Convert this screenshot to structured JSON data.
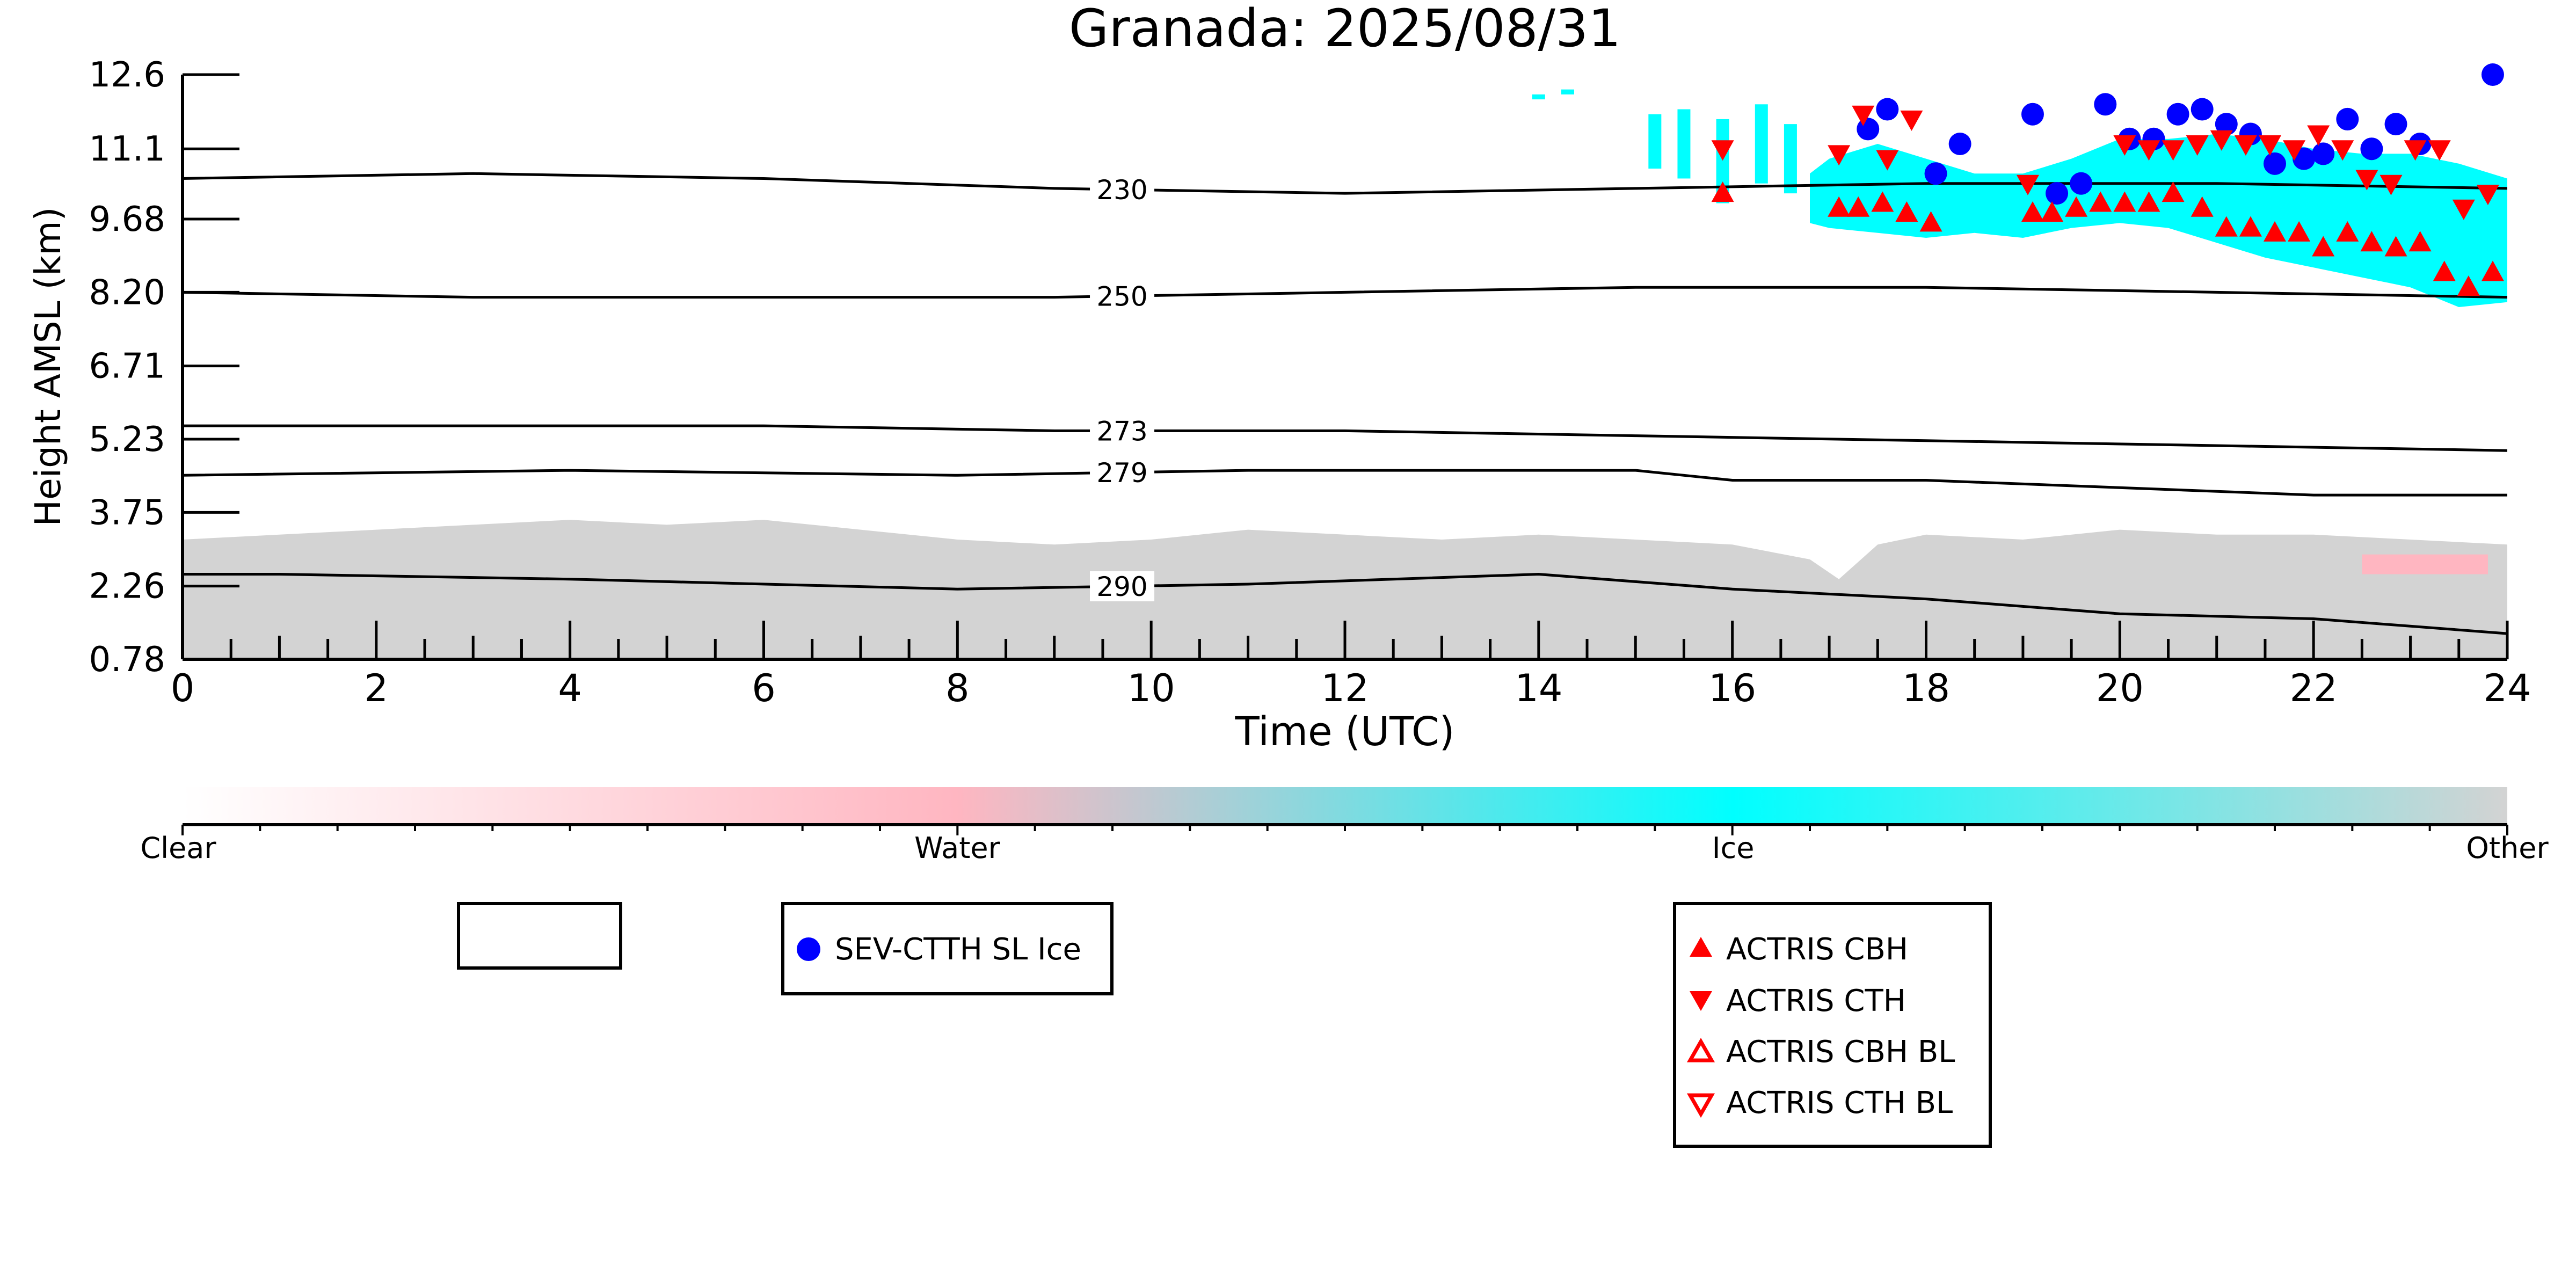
{
  "chart_data": {
    "type": "scatter",
    "title": "Granada: 2025/08/31",
    "xlabel": "Time (UTC)",
    "ylabel": "Height AMSL (km)",
    "xlim": [
      0,
      24
    ],
    "ylim": [
      0.78,
      12.6
    ],
    "x_ticks": [
      "0",
      "2",
      "4",
      "6",
      "8",
      "10",
      "12",
      "14",
      "16",
      "18",
      "20",
      "22",
      "24"
    ],
    "y_ticks": [
      "0.78",
      "2.26",
      "3.75",
      "5.23",
      "6.71",
      "8.20",
      "9.68",
      "11.1",
      "12.6"
    ],
    "grid": false,
    "colorbar": {
      "labels": [
        "Clear",
        "Water",
        "Ice",
        "Other"
      ],
      "colors": [
        "#ffffff",
        "#ffb6c1",
        "#00ffff",
        "#d3d3d3"
      ]
    },
    "classification": {
      "other_color": "#d3d3d3",
      "ice_color": "#00ffff",
      "water_color": "#ffb6c1",
      "other_top_km": [
        [
          0,
          3.2
        ],
        [
          1,
          3.3
        ],
        [
          2,
          3.4
        ],
        [
          3,
          3.5
        ],
        [
          4,
          3.6
        ],
        [
          5,
          3.5
        ],
        [
          6,
          3.6
        ],
        [
          7,
          3.4
        ],
        [
          8,
          3.2
        ],
        [
          9,
          3.1
        ],
        [
          10,
          3.2
        ],
        [
          11,
          3.4
        ],
        [
          12,
          3.3
        ],
        [
          13,
          3.2
        ],
        [
          14,
          3.3
        ],
        [
          15,
          3.2
        ],
        [
          16,
          3.1
        ],
        [
          16.8,
          2.8
        ],
        [
          17.1,
          2.4
        ],
        [
          17.5,
          3.1
        ],
        [
          18,
          3.3
        ],
        [
          19,
          3.2
        ],
        [
          20,
          3.4
        ],
        [
          21,
          3.3
        ],
        [
          22,
          3.3
        ],
        [
          23,
          3.2
        ],
        [
          24,
          3.1
        ]
      ],
      "ice_region_km": [
        [
          16.8,
          10.6,
          9.6
        ],
        [
          17,
          10.9,
          9.5
        ],
        [
          17.5,
          11.2,
          9.4
        ],
        [
          18,
          10.9,
          9.3
        ],
        [
          18.5,
          10.6,
          9.4
        ],
        [
          19,
          10.6,
          9.3
        ],
        [
          19.5,
          10.9,
          9.5
        ],
        [
          20,
          11.3,
          9.6
        ],
        [
          20.5,
          11.3,
          9.5
        ],
        [
          21,
          11.4,
          9.2
        ],
        [
          21.5,
          11.3,
          8.9
        ],
        [
          22,
          11.1,
          8.7
        ],
        [
          22.5,
          11.0,
          8.5
        ],
        [
          23,
          11.0,
          8.3
        ],
        [
          23.5,
          10.8,
          7.9
        ],
        [
          24,
          10.5,
          8.0
        ]
      ],
      "ice_fragments_km": [
        [
          15.2,
          11.8,
          10.7
        ],
        [
          15.5,
          11.9,
          10.5
        ],
        [
          15.9,
          11.7,
          10.0
        ],
        [
          16.3,
          12.0,
          10.4
        ],
        [
          16.6,
          11.6,
          10.2
        ],
        [
          14.0,
          12.2,
          12.1
        ],
        [
          14.3,
          12.3,
          12.2
        ]
      ],
      "water_patch_km": [
        [
          22.5,
          23.8,
          2.5,
          2.9
        ]
      ]
    },
    "isotherm_labels": [
      "230",
      "250",
      "273",
      "279",
      "290"
    ],
    "isotherms": [
      {
        "label": "230",
        "points": [
          [
            0,
            10.5
          ],
          [
            3,
            10.6
          ],
          [
            6,
            10.5
          ],
          [
            9,
            10.3
          ],
          [
            12,
            10.2
          ],
          [
            15,
            10.3
          ],
          [
            18,
            10.4
          ],
          [
            21,
            10.4
          ],
          [
            24,
            10.3
          ]
        ]
      },
      {
        "label": "250",
        "points": [
          [
            0,
            8.2
          ],
          [
            3,
            8.1
          ],
          [
            6,
            8.1
          ],
          [
            9,
            8.1
          ],
          [
            12,
            8.2
          ],
          [
            15,
            8.3
          ],
          [
            18,
            8.3
          ],
          [
            21,
            8.2
          ],
          [
            24,
            8.1
          ]
        ]
      },
      {
        "label": "273",
        "points": [
          [
            0,
            5.5
          ],
          [
            3,
            5.5
          ],
          [
            6,
            5.5
          ],
          [
            9,
            5.4
          ],
          [
            12,
            5.4
          ],
          [
            15,
            5.3
          ],
          [
            18,
            5.2
          ],
          [
            21,
            5.1
          ],
          [
            24,
            5.0
          ]
        ]
      },
      {
        "label": "279",
        "points": [
          [
            0,
            4.5
          ],
          [
            4,
            4.6
          ],
          [
            8,
            4.5
          ],
          [
            11,
            4.6
          ],
          [
            15,
            4.6
          ],
          [
            16,
            4.4
          ],
          [
            18,
            4.4
          ],
          [
            22,
            4.1
          ],
          [
            24,
            4.1
          ]
        ]
      },
      {
        "label": "290",
        "points": [
          [
            0,
            2.5
          ],
          [
            1,
            2.5
          ],
          [
            4,
            2.4
          ],
          [
            8,
            2.2
          ],
          [
            11,
            2.3
          ],
          [
            14,
            2.5
          ],
          [
            16,
            2.2
          ],
          [
            18,
            2.0
          ],
          [
            20,
            1.7
          ],
          [
            22,
            1.6
          ],
          [
            24,
            1.3
          ]
        ]
      }
    ],
    "series": [
      {
        "name": "SEV-CTTH SL Ice",
        "marker": "circle",
        "color": "#0000ff",
        "points": [
          [
            17.4,
            11.5
          ],
          [
            17.6,
            11.9
          ],
          [
            18.1,
            10.6
          ],
          [
            18.35,
            11.2
          ],
          [
            19.1,
            11.8
          ],
          [
            19.35,
            10.2
          ],
          [
            19.6,
            10.4
          ],
          [
            19.85,
            12.0
          ],
          [
            20.1,
            11.3
          ],
          [
            20.35,
            11.3
          ],
          [
            20.6,
            11.8
          ],
          [
            20.85,
            11.9
          ],
          [
            21.1,
            11.6
          ],
          [
            21.35,
            11.4
          ],
          [
            21.6,
            10.8
          ],
          [
            21.9,
            10.9
          ],
          [
            22.1,
            11.0
          ],
          [
            22.35,
            11.7
          ],
          [
            22.6,
            11.1
          ],
          [
            22.85,
            11.6
          ],
          [
            23.1,
            11.2
          ],
          [
            23.85,
            12.6
          ]
        ]
      },
      {
        "name": "ACTRIS CBH",
        "marker": "triangle-up",
        "color": "#ff0000",
        "points": [
          [
            15.9,
            10.2
          ],
          [
            17.1,
            9.9
          ],
          [
            17.3,
            9.9
          ],
          [
            17.55,
            10.0
          ],
          [
            17.8,
            9.8
          ],
          [
            18.05,
            9.6
          ],
          [
            19.1,
            9.8
          ],
          [
            19.3,
            9.8
          ],
          [
            19.55,
            9.9
          ],
          [
            19.8,
            10.0
          ],
          [
            20.05,
            10.0
          ],
          [
            20.3,
            10.0
          ],
          [
            20.55,
            10.2
          ],
          [
            20.85,
            9.9
          ],
          [
            21.1,
            9.5
          ],
          [
            21.35,
            9.5
          ],
          [
            21.6,
            9.4
          ],
          [
            21.85,
            9.4
          ],
          [
            22.1,
            9.1
          ],
          [
            22.35,
            9.4
          ],
          [
            22.6,
            9.2
          ],
          [
            22.85,
            9.1
          ],
          [
            23.1,
            9.2
          ],
          [
            23.35,
            8.6
          ],
          [
            23.6,
            8.3
          ],
          [
            23.85,
            8.6
          ]
        ]
      },
      {
        "name": "ACTRIS CTH",
        "marker": "triangle-down",
        "color": "#ff0000",
        "points": [
          [
            15.9,
            11.1
          ],
          [
            17.1,
            11.0
          ],
          [
            17.35,
            11.8
          ],
          [
            17.6,
            10.9
          ],
          [
            17.85,
            11.7
          ],
          [
            19.05,
            10.4
          ],
          [
            20.05,
            11.2
          ],
          [
            20.3,
            11.1
          ],
          [
            20.55,
            11.1
          ],
          [
            20.8,
            11.2
          ],
          [
            21.05,
            11.3
          ],
          [
            21.3,
            11.2
          ],
          [
            21.55,
            11.2
          ],
          [
            21.8,
            11.1
          ],
          [
            22.05,
            11.4
          ],
          [
            22.3,
            11.1
          ],
          [
            22.55,
            10.5
          ],
          [
            22.8,
            10.4
          ],
          [
            23.05,
            11.1
          ],
          [
            23.3,
            11.1
          ],
          [
            23.55,
            9.9
          ],
          [
            23.8,
            10.2
          ]
        ]
      },
      {
        "name": "ACTRIS CBH BL",
        "marker": "triangle-up-open",
        "color": "#ff0000",
        "points": []
      },
      {
        "name": "ACTRIS CTH BL",
        "marker": "triangle-down-open",
        "color": "#ff0000",
        "points": []
      }
    ],
    "legends": {
      "empty_box": [],
      "satellite": [
        "SEV-CTTH SL Ice"
      ],
      "actris": [
        "ACTRIS CBH",
        "ACTRIS CTH",
        "ACTRIS CBH BL",
        "ACTRIS CTH BL"
      ]
    }
  }
}
